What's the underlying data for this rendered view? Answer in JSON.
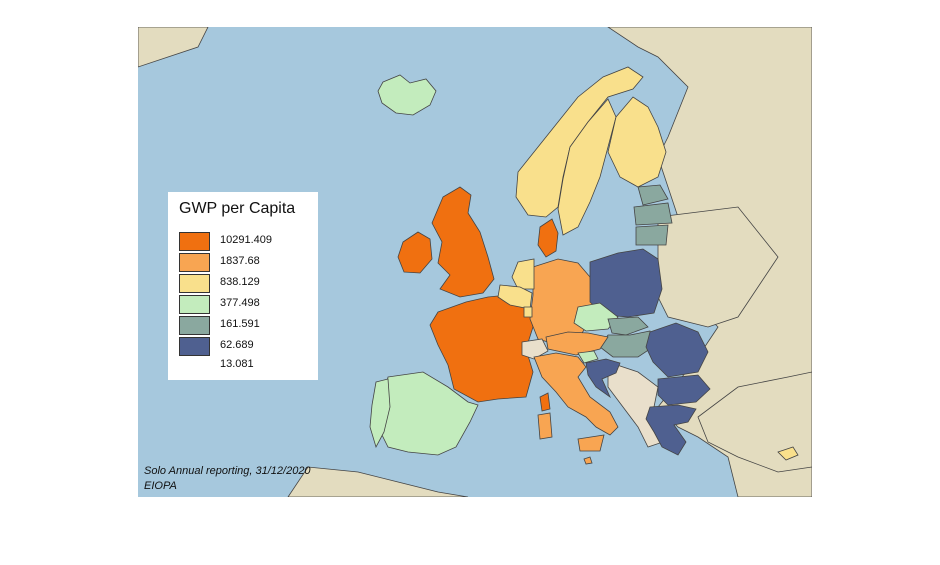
{
  "colors": {
    "sea": "#a6c8dd",
    "land": "#e3dcbf",
    "c1": "#f07010",
    "c2": "#f8a552",
    "c3": "#f9e08c",
    "c4": "#c3ecbd",
    "c5": "#8aa89f",
    "c6": "#4f6090",
    "noData": "#e9dfcb"
  },
  "legend": {
    "title": "GWP per Capita",
    "items": [
      {
        "label": "10291.409",
        "color": "#f07010"
      },
      {
        "label": "1837.68",
        "color": "#f8a552"
      },
      {
        "label": "838.129",
        "color": "#f9e08c"
      },
      {
        "label": "377.498",
        "color": "#c3ecbd"
      },
      {
        "label": "161.591",
        "color": "#8aa89f"
      },
      {
        "label": "62.689",
        "color": "#4f6090"
      },
      {
        "label": "13.081",
        "color": ""
      }
    ]
  },
  "source": {
    "line1": "Solo Annual reporting, 31/12/2020",
    "line2": "EIOPA"
  },
  "map": {
    "regions": [
      {
        "name": "Iceland",
        "class": 4
      },
      {
        "name": "Ireland",
        "class": 1
      },
      {
        "name": "United Kingdom",
        "class": 1
      },
      {
        "name": "France",
        "class": 1
      },
      {
        "name": "Spain",
        "class": 4
      },
      {
        "name": "Portugal",
        "class": 4
      },
      {
        "name": "Germany",
        "class": 2
      },
      {
        "name": "Netherlands",
        "class": 3
      },
      {
        "name": "Belgium",
        "class": 3
      },
      {
        "name": "Luxembourg",
        "class": 3
      },
      {
        "name": "Denmark",
        "class": 1
      },
      {
        "name": "Norway",
        "class": 3
      },
      {
        "name": "Sweden",
        "class": 3
      },
      {
        "name": "Finland",
        "class": 3
      },
      {
        "name": "Estonia",
        "class": 5
      },
      {
        "name": "Latvia",
        "class": 5
      },
      {
        "name": "Lithuania",
        "class": 5
      },
      {
        "name": "Poland",
        "class": 6
      },
      {
        "name": "Czechia",
        "class": 4
      },
      {
        "name": "Slovakia",
        "class": 5
      },
      {
        "name": "Hungary",
        "class": 5
      },
      {
        "name": "Austria",
        "class": 2
      },
      {
        "name": "Switzerland",
        "class": 0
      },
      {
        "name": "Italy",
        "class": 2
      },
      {
        "name": "Slovenia",
        "class": 4
      },
      {
        "name": "Croatia",
        "class": 6
      },
      {
        "name": "Romania",
        "class": 6
      },
      {
        "name": "Bulgaria",
        "class": 6
      },
      {
        "name": "Greece",
        "class": 6
      },
      {
        "name": "Cyprus",
        "class": 3
      },
      {
        "name": "Malta",
        "class": 2
      }
    ]
  }
}
